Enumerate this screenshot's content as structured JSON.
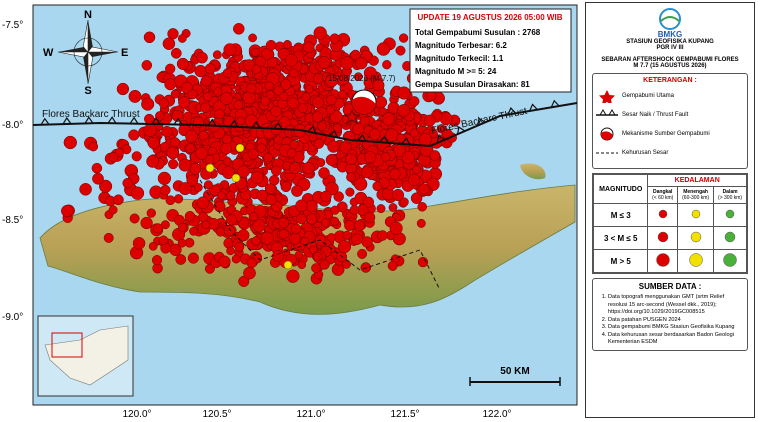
{
  "map": {
    "lat_labels": [
      "-7.5°",
      "-8.0°",
      "-8.5°",
      "-9.0°"
    ],
    "lon_labels": [
      "120.0°",
      "120.5°",
      "121.0°",
      "121.5°",
      "122.0°"
    ],
    "compass": {
      "n": "N",
      "s": "S",
      "e": "E",
      "w": "W"
    },
    "fault_labels": [
      "Flores Backarc Thrust",
      "Flores Backarc Thrust"
    ],
    "mainshock_label": "15/08/2026 (M 7.7)",
    "scale_label": "50 KM"
  },
  "update_box": {
    "title": "UPDATE 19 AGUSTUS 2026 05:00 WIB",
    "lines": [
      "Total Gempabumi Susulan : 2768",
      "Magnitudo Terbesar: 6.2",
      "Magnitudo Terkecil: 1.1",
      "Magnitudo M >= 5: 24",
      "Gempa Susulan Dirasakan: 81"
    ]
  },
  "panel": {
    "logo": "BMKG",
    "station": "STASIUN GEOFISIKA KUPANG",
    "region": "PGR IV III",
    "heading": "SEBARAN AFTERSHOCK GEMPABUMI FLORES",
    "subheading": "M 7.7 (15 AGUSTUS 2026)",
    "legend_title": "KETERANGAN :",
    "legend_items": [
      "Gempabumi Utama",
      "Sesar Naik / Thrust Fault",
      "Mekanisme Sumber Gempabumi",
      "Kehurusan Sesar"
    ],
    "magnitude_header": "MAGNITUDO",
    "depth_header": "KEDALAMAN",
    "depth_cols": [
      {
        "name": "Dangkal",
        "range": "(< 60 km)"
      },
      {
        "name": "Menengah",
        "range": "(60-300 km)"
      },
      {
        "name": "Dalam",
        "range": "(> 300 km)"
      }
    ],
    "magnitude_rows": [
      "M ≤ 3",
      "3 < M ≤ 5",
      "M > 5"
    ],
    "sources_title": "SUMBER DATA :",
    "sources": [
      "Data topografi menggunakan GMT (srtm Relief resolusi 15 arc-second (Wessel dkk., 2019); https://doi.org/10.1029/2019GC008515",
      "Data patahan PUSGEN 2024",
      "Data gempabumi BMKG Stasiun Geofisika Kupang",
      "Data kehurusan sesar berdasarkan Badon Geologi Kementerian ESDM"
    ]
  }
}
